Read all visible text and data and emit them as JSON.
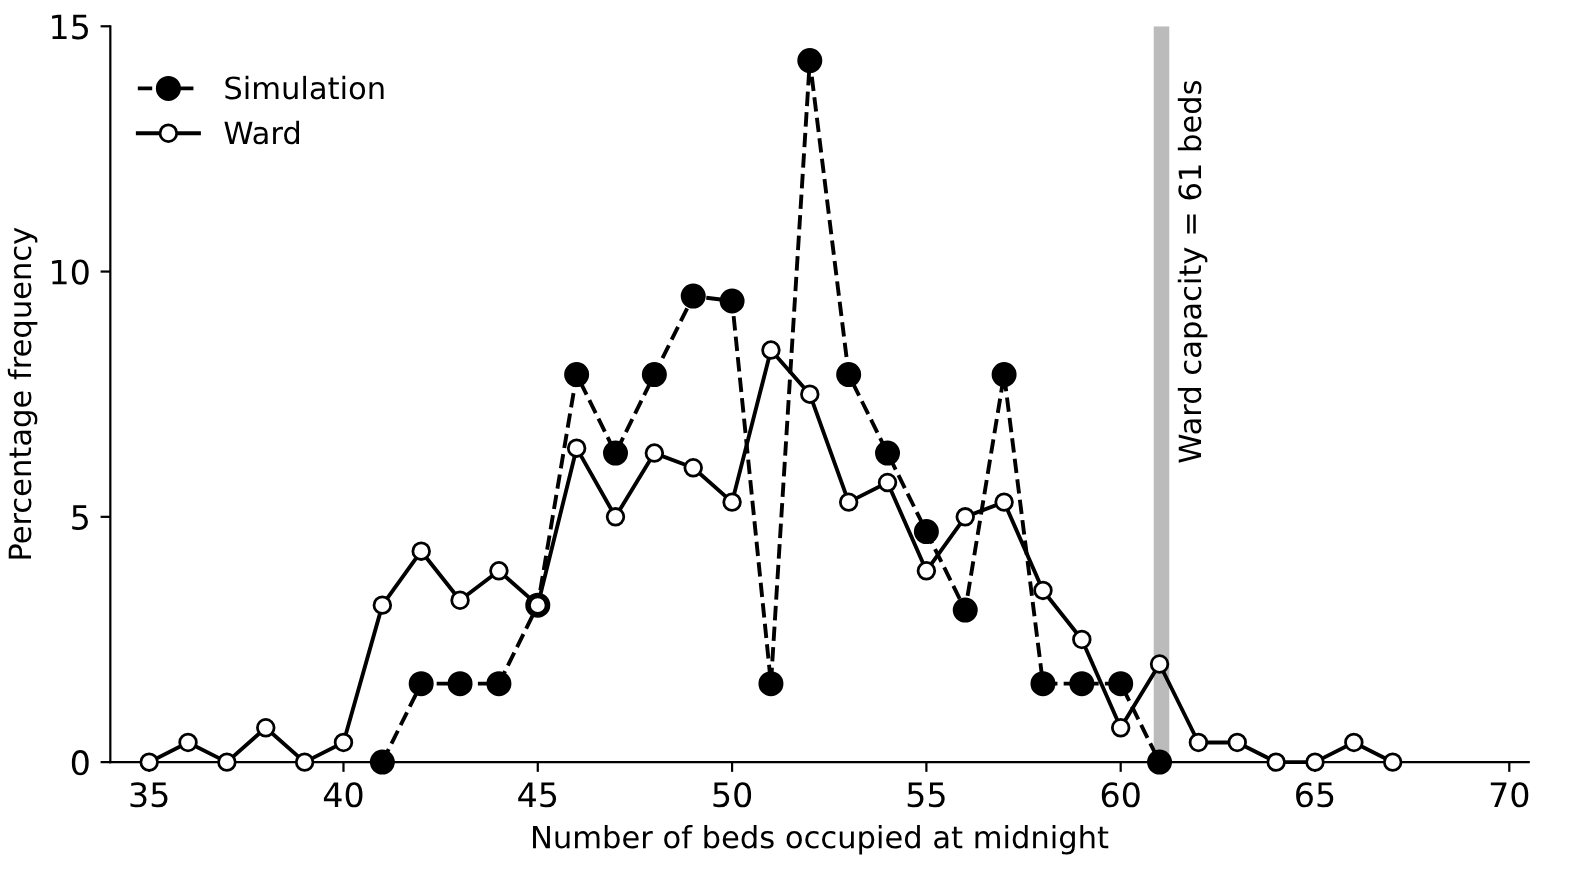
{
  "chart_data": {
    "type": "line",
    "xlabel": "Number of beds occupied at midnight",
    "ylabel": "Percentage frequency",
    "xlim": [
      34,
      70.5
    ],
    "xticks": [
      35,
      40,
      45,
      50,
      55,
      60,
      65,
      70
    ],
    "ylim": [
      0,
      15
    ],
    "yticks": [
      0,
      5,
      10,
      15
    ],
    "grid": false,
    "legend": "top left",
    "series": [
      {
        "name": "Simulation",
        "color": "#000000",
        "marker": "circle",
        "line_style": "dashed",
        "x": [
          41,
          42,
          43,
          44,
          45,
          46,
          47,
          48,
          49,
          50,
          51,
          52,
          53,
          54,
          55,
          56,
          57,
          58,
          59,
          60,
          61
        ],
        "values": [
          0,
          1.6,
          1.6,
          1.6,
          3.2,
          7.9,
          6.3,
          7.9,
          9.5,
          9.4,
          1.6,
          14.3,
          7.9,
          6.3,
          4.7,
          3.1,
          7.9,
          1.6,
          1.6,
          1.6,
          0
        ]
      },
      {
        "name": "Ward",
        "color": "#000000",
        "marker": "circle",
        "line_style": "solid",
        "x": [
          35,
          36,
          37,
          38,
          39,
          40,
          41,
          42,
          43,
          44,
          45,
          46,
          47,
          48,
          49,
          50,
          51,
          52,
          53,
          54,
          55,
          56,
          57,
          58,
          59,
          60,
          61,
          62,
          63,
          64,
          65,
          66,
          67
        ],
        "values": [
          0,
          0.4,
          0,
          0.7,
          0,
          0.4,
          3.2,
          4.3,
          3.3,
          3.9,
          3.2,
          6.4,
          5.0,
          6.3,
          6.0,
          5.3,
          8.4,
          7.5,
          5.3,
          5.7,
          3.9,
          5.0,
          5.3,
          3.5,
          2.5,
          0.7,
          2.0,
          0.4,
          0.4,
          0,
          0,
          0.4,
          0
        ]
      }
    ],
    "bands": [
      {
        "axis": "x",
        "from": 60.85,
        "to": 61.25,
        "label": "Ward capacity = 61 beds",
        "color": "#bbbbbb"
      }
    ]
  }
}
